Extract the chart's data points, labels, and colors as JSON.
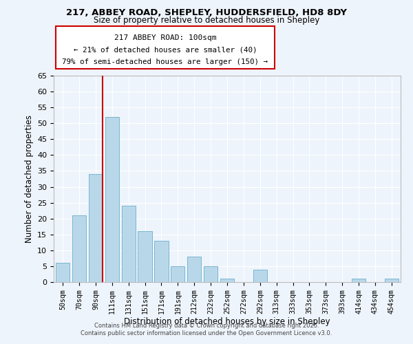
{
  "title": "217, ABBEY ROAD, SHEPLEY, HUDDERSFIELD, HD8 8DY",
  "subtitle": "Size of property relative to detached houses in Shepley",
  "xlabel": "Distribution of detached houses by size in Shepley",
  "ylabel": "Number of detached properties",
  "bar_labels": [
    "50sqm",
    "70sqm",
    "90sqm",
    "111sqm",
    "131sqm",
    "151sqm",
    "171sqm",
    "191sqm",
    "212sqm",
    "232sqm",
    "252sqm",
    "272sqm",
    "292sqm",
    "313sqm",
    "333sqm",
    "353sqm",
    "373sqm",
    "393sqm",
    "414sqm",
    "434sqm",
    "454sqm"
  ],
  "bar_values": [
    6,
    21,
    34,
    52,
    24,
    16,
    13,
    5,
    8,
    5,
    1,
    0,
    4,
    0,
    0,
    0,
    0,
    0,
    1,
    0,
    1
  ],
  "bar_color": "#b8d8ea",
  "bar_edge_color": "#7ab5d0",
  "ylim": [
    0,
    65
  ],
  "yticks": [
    0,
    5,
    10,
    15,
    20,
    25,
    30,
    35,
    40,
    45,
    50,
    55,
    60,
    65
  ],
  "vline_color": "#cc0000",
  "annotation_title": "217 ABBEY ROAD: 100sqm",
  "annotation_line1": "← 21% of detached houses are smaller (40)",
  "annotation_line2": "79% of semi-detached houses are larger (150) →",
  "footer_line1": "Contains HM Land Registry data © Crown copyright and database right 2025.",
  "footer_line2": "Contains public sector information licensed under the Open Government Licence v3.0.",
  "background_color": "#eef4fb",
  "grid_color": "#ffffff"
}
